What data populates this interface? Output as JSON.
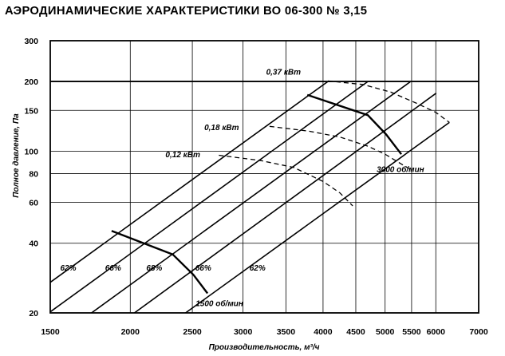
{
  "chart_data": {
    "type": "line",
    "title": "АЭРОДИНАМИЧЕСКИЕ ХАРАКТЕРИСТИКИ ВО 06-300 № 3,15",
    "xlabel": "Производительность, м³/ч",
    "ylabel": "Полное давление, Па",
    "x_scale": "log",
    "y_scale": "log",
    "xlim": [
      1500,
      7000
    ],
    "ylim": [
      20,
      300
    ],
    "grid": true,
    "x_ticks": [
      1500,
      2000,
      2500,
      3000,
      3500,
      4000,
      4500,
      5000,
      5500,
      6000,
      7000
    ],
    "y_ticks": [
      20,
      40,
      60,
      80,
      100,
      150,
      200,
      300
    ],
    "emphasized_y": 200,
    "system_lines": [
      {
        "points": [
          [
            1500,
            27.1
          ],
          [
            4070,
            200
          ]
        ]
      },
      {
        "points": [
          [
            1500,
            20.2
          ],
          [
            4700,
            200
          ]
        ]
      },
      {
        "points": [
          [
            1740,
            20
          ],
          [
            5480,
            200
          ]
        ]
      },
      {
        "points": [
          [
            2030,
            20
          ],
          [
            6010,
            178
          ]
        ]
      },
      {
        "points": [
          [
            2440,
            20
          ],
          [
            6300,
            133
          ]
        ]
      }
    ],
    "rpm_curves": [
      {
        "label": "3000 об/мин",
        "points": [
          [
            3780,
            175
          ],
          [
            4700,
            143
          ],
          [
            5020,
            118
          ],
          [
            5300,
            97
          ]
        ]
      },
      {
        "label": "1500 об/мин",
        "points": [
          [
            1870,
            45.2
          ],
          [
            2330,
            35.8
          ],
          [
            2510,
            29.2
          ],
          [
            2640,
            24.3
          ]
        ]
      }
    ],
    "power_curves": [
      {
        "label": "0,37 кВт",
        "points": [
          [
            4070,
            201
          ],
          [
            4620,
            194
          ],
          [
            5100,
            180
          ],
          [
            5600,
            161
          ],
          [
            6000,
            147
          ],
          [
            6300,
            133
          ]
        ]
      },
      {
        "label": "0,18 кВт",
        "points": [
          [
            3300,
            128
          ],
          [
            3800,
            122
          ],
          [
            4250,
            115
          ],
          [
            4700,
            105
          ],
          [
            5000,
            97
          ],
          [
            5450,
            84
          ]
        ]
      },
      {
        "label": "0,12 кВт",
        "points": [
          [
            2750,
            96
          ],
          [
            3200,
            91
          ],
          [
            3600,
            85
          ],
          [
            4000,
            74
          ],
          [
            4250,
            66
          ],
          [
            4450,
            58
          ]
        ]
      }
    ],
    "efficiency_labels": [
      {
        "text": "62%",
        "x": 1600,
        "y": 31.5
      },
      {
        "text": "66%",
        "x": 1880,
        "y": 31.5
      },
      {
        "text": "68%",
        "x": 2180,
        "y": 31.5
      },
      {
        "text": "66%",
        "x": 2600,
        "y": 31.5
      },
      {
        "text": "62%",
        "x": 3160,
        "y": 31.5
      }
    ],
    "power_labels": [
      {
        "text": "0,37 кВт",
        "x": 3260,
        "y": 221
      },
      {
        "text": "0,18 кВт",
        "x": 2610,
        "y": 127
      },
      {
        "text": "0,12 кВт",
        "x": 2270,
        "y": 97
      }
    ],
    "rpm_labels": [
      {
        "text": "3000 об/мин",
        "x": 4850,
        "y": 84
      },
      {
        "text": "1500 об/мин",
        "x": 2530,
        "y": 22.1
      }
    ]
  }
}
